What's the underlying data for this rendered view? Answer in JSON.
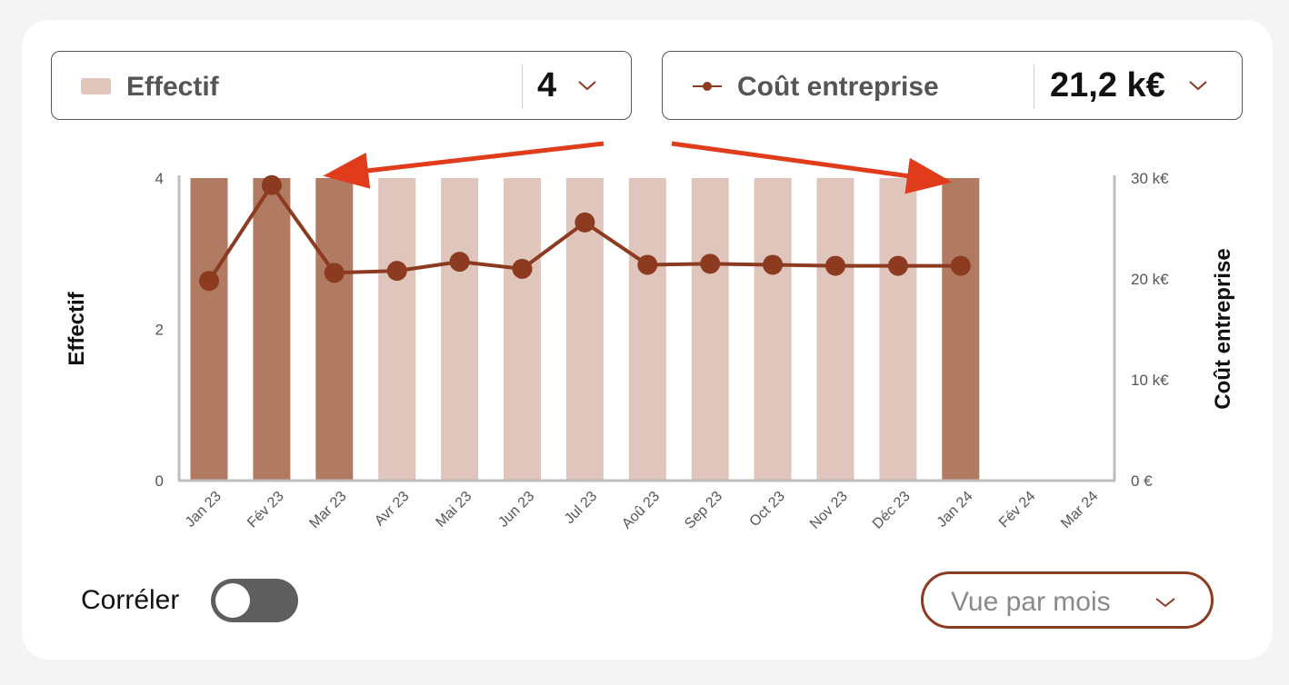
{
  "selectors": {
    "left": {
      "legend_color": "#dfc5bc",
      "label": "Effectif",
      "value": "4"
    },
    "right": {
      "legend_color": "#8c3b20",
      "label": "Coût entreprise",
      "value": "21,2 k€"
    }
  },
  "chart_data": {
    "type": "bar+line",
    "categories": [
      "Jan 23",
      "Fév 23",
      "Mar 23",
      "Avr 23",
      "Mai 23",
      "Jun 23",
      "Jul 23",
      "Aoû 23",
      "Sep 23",
      "Oct 23",
      "Nov 23",
      "Déc 23",
      "Jan 24",
      "Fév 24",
      "Mar 24"
    ],
    "bar_values": [
      4,
      4,
      4,
      4,
      4,
      4,
      4,
      4,
      4,
      4,
      4,
      4,
      4,
      null,
      null
    ],
    "bar_highlighted": [
      true,
      true,
      true,
      false,
      false,
      false,
      false,
      false,
      false,
      false,
      false,
      false,
      true,
      false,
      false
    ],
    "line_values": [
      19.8,
      29.3,
      20.6,
      20.8,
      21.7,
      21.0,
      25.6,
      21.4,
      21.5,
      21.4,
      21.3,
      21.3,
      21.3,
      null,
      null
    ],
    "ylabel": "Effectif",
    "ylabel_right": "Coût entreprise",
    "ylim": [
      0,
      4
    ],
    "ylim_right": [
      0,
      30
    ],
    "yticks": [
      "0",
      "2",
      "4"
    ],
    "yticks_right": [
      "0 €",
      "10 k€",
      "20 k€",
      "30 k€"
    ],
    "colors": {
      "bar": "#dfc5bc",
      "bar_highlight": "#b07a63",
      "line": "#8c3b20",
      "arrow": "#e03c1c",
      "axis": "#bdbdbd"
    }
  },
  "controls": {
    "correlate_label": "Corréler",
    "correlate_on": false,
    "view_label": "Vue par mois"
  }
}
